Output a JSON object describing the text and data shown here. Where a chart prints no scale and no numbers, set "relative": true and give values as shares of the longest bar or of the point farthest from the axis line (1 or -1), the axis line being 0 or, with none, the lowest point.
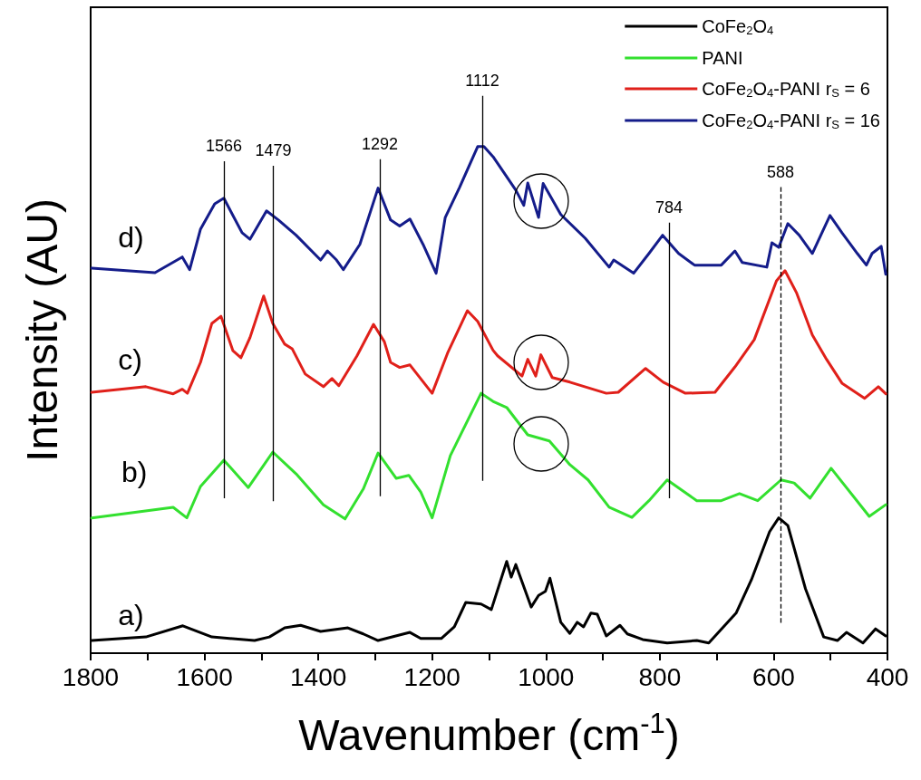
{
  "chart_data": {
    "type": "line",
    "relative": true,
    "xlabel": "Wavenumber (cm$^{-1}$)",
    "ylabel": "Intensity (AU)",
    "xlim": [
      1800,
      400
    ],
    "xticks": [
      1800,
      {
        "value": 1700,
        "label": null
      },
      1600,
      {
        "value": 1500,
        "label": null
      },
      1400,
      {
        "value": 1300,
        "label": null
      },
      1200,
      {
        "value": 1100,
        "label": null
      },
      1000,
      {
        "value": 900,
        "label": null
      },
      800,
      {
        "value": 700,
        "label": null
      },
      600,
      {
        "value": 500,
        "label": null
      },
      400
    ],
    "grid": false,
    "legend": "top right",
    "marker": "none",
    "line_style": "solid",
    "series": [
      {
        "name": "CoFe$_{2}$O$_{4}$",
        "color": "#000000",
        "x": [
          1798,
          1703,
          1638,
          1587,
          1512,
          1486,
          1459,
          1431,
          1396,
          1348,
          1321,
          1295,
          1239,
          1220,
          1184,
          1161,
          1141,
          1114,
          1096,
          1069,
          1061,
          1053,
          1026,
          1013,
          1001,
          993,
          974,
          958,
          945,
          934,
          921,
          910,
          894,
          870,
          857,
          830,
          787,
          735,
          714,
          666,
          639,
          607,
          591,
          575,
          544,
          512,
          488,
          472,
          443,
          421,
          403
        ],
        "values": [
          0.025,
          0.032,
          0.054,
          0.032,
          0.025,
          0.032,
          0.05,
          0.055,
          0.043,
          0.05,
          0.038,
          0.025,
          0.041,
          0.029,
          0.029,
          0.052,
          0.1,
          0.097,
          0.086,
          0.181,
          0.15,
          0.175,
          0.091,
          0.114,
          0.122,
          0.148,
          0.061,
          0.039,
          0.061,
          0.052,
          0.079,
          0.077,
          0.034,
          0.055,
          0.038,
          0.027,
          0.02,
          0.025,
          0.02,
          0.079,
          0.145,
          0.24,
          0.267,
          0.252,
          0.127,
          0.032,
          0.025,
          0.041,
          0.02,
          0.048,
          0.034
        ]
      },
      {
        "name": "PANI",
        "color": "#33e02f",
        "x": [
          1798,
          1655,
          1631,
          1607,
          1566,
          1523,
          1480,
          1439,
          1391,
          1353,
          1321,
          1295,
          1263,
          1241,
          1220,
          1200,
          1168,
          1114,
          1093,
          1069,
          1032,
          994,
          958,
          926,
          889,
          849,
          819,
          787,
          735,
          692,
          660,
          628,
          587,
          564,
          536,
          499,
          432,
          403
        ],
        "values": [
          0.267,
          0.288,
          0.267,
          0.329,
          0.381,
          0.327,
          0.397,
          0.354,
          0.293,
          0.265,
          0.324,
          0.395,
          0.345,
          0.351,
          0.318,
          0.267,
          0.39,
          0.513,
          0.497,
          0.485,
          0.431,
          0.419,
          0.372,
          0.342,
          0.288,
          0.268,
          0.301,
          0.342,
          0.301,
          0.301,
          0.315,
          0.301,
          0.342,
          0.336,
          0.306,
          0.365,
          0.27,
          0.293
        ]
      },
      {
        "name": "CoFe$_{2}$O$_{4}$-PANI r$_{S}$ = 6",
        "color": "#e0201a",
        "x": [
          1798,
          1703,
          1655,
          1639,
          1630,
          1607,
          1587,
          1571,
          1550,
          1536,
          1520,
          1496,
          1480,
          1459,
          1446,
          1423,
          1391,
          1376,
          1364,
          1332,
          1303,
          1284,
          1273,
          1257,
          1239,
          1200,
          1173,
          1138,
          1120,
          1093,
          1085,
          1042,
          1032,
          1018,
          1009,
          989,
          958,
          894,
          873,
          825,
          794,
          755,
          703,
          668,
          634,
          595,
          580,
          560,
          532,
          507,
          480,
          440,
          416,
          403
        ],
        "values": [
          0.515,
          0.526,
          0.512,
          0.521,
          0.513,
          0.574,
          0.651,
          0.665,
          0.597,
          0.583,
          0.623,
          0.705,
          0.651,
          0.61,
          0.601,
          0.551,
          0.526,
          0.542,
          0.528,
          0.587,
          0.649,
          0.615,
          0.574,
          0.564,
          0.569,
          0.513,
          0.592,
          0.676,
          0.655,
          0.598,
          0.587,
          0.547,
          0.58,
          0.547,
          0.589,
          0.544,
          0.535,
          0.513,
          0.515,
          0.562,
          0.535,
          0.513,
          0.515,
          0.565,
          0.619,
          0.735,
          0.755,
          0.712,
          0.628,
          0.58,
          0.533,
          0.503,
          0.526,
          0.512
        ]
      },
      {
        "name": "CoFe$_{2}$O$_{4}$-PANI r$_{S}$ = 16",
        "color": "#141c8a",
        "x": [
          1798,
          1687,
          1639,
          1626,
          1607,
          1582,
          1566,
          1534,
          1520,
          1491,
          1470,
          1439,
          1396,
          1384,
          1368,
          1356,
          1327,
          1295,
          1273,
          1257,
          1239,
          1216,
          1193,
          1177,
          1152,
          1120,
          1109,
          1093,
          1053,
          1039,
          1032,
          1013,
          1005,
          974,
          931,
          889,
          881,
          846,
          819,
          795,
          767,
          739,
          692,
          668,
          655,
          612,
          603,
          591,
          575,
          555,
          532,
          501,
          480,
          453,
          437,
          427,
          411,
          403
        ],
        "values": [
          0.76,
          0.751,
          0.782,
          0.757,
          0.837,
          0.887,
          0.898,
          0.83,
          0.817,
          0.873,
          0.855,
          0.825,
          0.776,
          0.794,
          0.776,
          0.757,
          0.807,
          0.918,
          0.855,
          0.843,
          0.857,
          0.807,
          0.75,
          0.86,
          0.919,
          1,
          1,
          0.98,
          0.914,
          0.884,
          0.928,
          0.86,
          0.927,
          0.866,
          0.819,
          0.762,
          0.776,
          0.75,
          0.789,
          0.825,
          0.789,
          0.766,
          0.766,
          0.794,
          0.771,
          0.762,
          0.81,
          0.801,
          0.848,
          0.825,
          0.789,
          0.864,
          0.83,
          0.789,
          0.766,
          0.789,
          0.803,
          0.748
        ]
      }
    ],
    "ref_lines": [
      {
        "axis": "x",
        "value": 1566,
        "label": "1566",
        "color": "#000000",
        "line_style": "solid"
      },
      {
        "axis": "x",
        "value": 1479,
        "label": "1479",
        "color": "#000000",
        "line_style": "solid"
      },
      {
        "axis": "x",
        "value": 1292,
        "label": "1292",
        "color": "#000000",
        "line_style": "solid"
      },
      {
        "axis": "x",
        "value": 1112,
        "label": "1112",
        "color": "#000000",
        "line_style": "solid"
      },
      {
        "axis": "x",
        "value": 784,
        "label": "784",
        "color": "#000000",
        "line_style": "solid"
      },
      {
        "axis": "x",
        "value": 588,
        "label": "588",
        "color": "#000000",
        "line_style": "dashed"
      }
    ],
    "annotations": [
      "a)",
      "b)",
      "c)",
      "d)"
    ]
  }
}
